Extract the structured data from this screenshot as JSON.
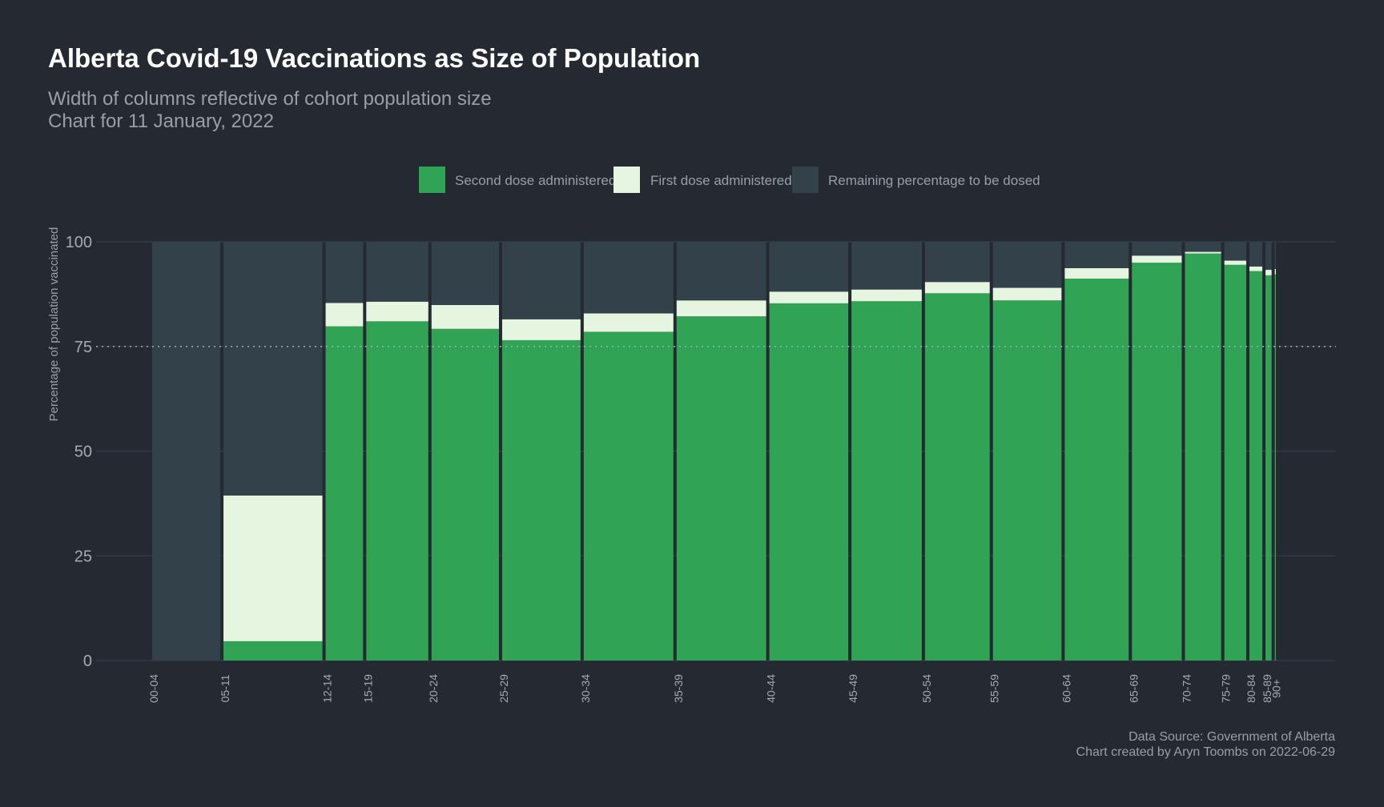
{
  "chart_data": {
    "type": "bar",
    "title": "Alberta Covid-19 Vaccinations as Size of Population",
    "subtitle_line1": "Width of columns reflective of cohort population size",
    "subtitle_line2": "Chart for 11 January, 2022",
    "ylabel": "Percentage of population vaccinated",
    "xlabel": "",
    "ylim": [
      0,
      100
    ],
    "yticks": [
      "0",
      "25",
      "50",
      "75",
      "100"
    ],
    "reference_line": 75,
    "legend_position": "top-center",
    "legend": [
      {
        "label": "Second dose administered",
        "color": "#31a354"
      },
      {
        "label": "First dose administered",
        "color": "#e5f5e0"
      },
      {
        "label": "Remaining percentage to be dosed",
        "color": "#33414b"
      }
    ],
    "categories": [
      "00-04",
      "05-11",
      "12-14",
      "15-19",
      "20-24",
      "25-29",
      "30-34",
      "35-39",
      "40-44",
      "45-49",
      "50-54",
      "55-59",
      "60-64",
      "65-69",
      "70-74",
      "75-79",
      "80-84",
      "85-89",
      "90+"
    ],
    "population_width": [
      84.7,
      121.3,
      48.3,
      77.5,
      83.9,
      96.9,
      110.3,
      110.2,
      97.5,
      87.3,
      80.7,
      85.3,
      79.8,
      63.0,
      46.8,
      29.8,
      19.1,
      11.0,
      5.1
    ],
    "series": [
      {
        "name": "Second dose administered",
        "values": [
          0,
          4.6,
          79.8,
          81.0,
          79.2,
          76.5,
          78.5,
          82.2,
          85.3,
          85.8,
          87.7,
          86.0,
          91.2,
          95.0,
          97.2,
          94.5,
          93.0,
          92.0,
          92.2
        ]
      },
      {
        "name": "First dose administered",
        "values": [
          0,
          34.8,
          5.6,
          4.7,
          5.7,
          5.0,
          4.4,
          3.8,
          2.8,
          2.8,
          2.7,
          3.0,
          2.5,
          1.7,
          0.4,
          1.0,
          1.1,
          1.3,
          1.3
        ]
      },
      {
        "name": "Remaining percentage to be dosed",
        "values": [
          100,
          60.6,
          14.6,
          14.3,
          15.1,
          18.5,
          17.1,
          14.0,
          11.9,
          11.4,
          9.6,
          11.0,
          6.3,
          3.3,
          2.4,
          4.5,
          5.9,
          6.7,
          6.5
        ]
      }
    ],
    "caption_line1": "Data Source: Government of Alberta",
    "caption_line2": "Chart created by Aryn Toombs on 2022-06-29"
  }
}
